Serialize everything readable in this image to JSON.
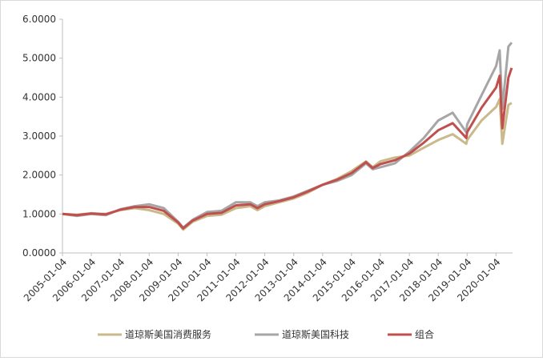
{
  "chart_data": {
    "type": "line",
    "x": [
      "2005-01-04",
      "2005-07-05",
      "2006-01-04",
      "2006-07-05",
      "2007-01-04",
      "2007-07-05",
      "2008-01-04",
      "2008-07-07",
      "2009-01-05",
      "2009-03-09",
      "2009-07-06",
      "2010-01-04",
      "2010-07-06",
      "2011-01-04",
      "2011-07-05",
      "2011-10-03",
      "2012-01-04",
      "2012-07-05",
      "2013-01-04",
      "2013-07-05",
      "2014-01-06",
      "2014-07-07",
      "2015-01-05",
      "2015-07-06",
      "2015-09-28",
      "2016-01-04",
      "2016-07-05",
      "2017-01-04",
      "2017-07-05",
      "2018-01-04",
      "2018-07-05",
      "2018-12-24",
      "2019-01-04",
      "2019-07-05",
      "2020-01-06",
      "2020-02-19",
      "2020-03-23",
      "2020-06-08",
      "2020-07-20"
    ],
    "series": [
      {
        "name": "道琼斯美国消费服务",
        "color": "#c9b98b",
        "values": [
          1.0,
          0.98,
          1.02,
          1.0,
          1.1,
          1.15,
          1.1,
          1.0,
          0.75,
          0.6,
          0.8,
          0.95,
          0.98,
          1.15,
          1.2,
          1.1,
          1.2,
          1.3,
          1.4,
          1.55,
          1.75,
          1.9,
          2.1,
          2.35,
          2.2,
          2.35,
          2.45,
          2.5,
          2.7,
          2.9,
          3.05,
          2.8,
          2.9,
          3.4,
          3.75,
          3.95,
          2.8,
          3.8,
          3.85
        ]
      },
      {
        "name": "道琼斯美国科技",
        "color": "#a6a6a6",
        "values": [
          1.0,
          0.95,
          1.0,
          0.97,
          1.12,
          1.2,
          1.25,
          1.15,
          0.8,
          0.65,
          0.85,
          1.05,
          1.08,
          1.3,
          1.3,
          1.2,
          1.3,
          1.35,
          1.45,
          1.6,
          1.75,
          1.85,
          2.0,
          2.3,
          2.15,
          2.2,
          2.3,
          2.6,
          2.95,
          3.4,
          3.6,
          3.1,
          3.3,
          4.05,
          4.8,
          5.2,
          3.7,
          5.3,
          5.4
        ]
      },
      {
        "name": "组合",
        "color": "#c0504d",
        "values": [
          1.0,
          0.97,
          1.01,
          0.99,
          1.11,
          1.18,
          1.18,
          1.08,
          0.78,
          0.63,
          0.83,
          1.0,
          1.03,
          1.22,
          1.25,
          1.15,
          1.25,
          1.33,
          1.43,
          1.58,
          1.75,
          1.88,
          2.05,
          2.33,
          2.18,
          2.28,
          2.38,
          2.55,
          2.83,
          3.15,
          3.33,
          2.95,
          3.1,
          3.73,
          4.25,
          4.55,
          3.2,
          4.5,
          4.75
        ]
      }
    ],
    "xlim": [
      "2005-01-04",
      "2020-07-31"
    ],
    "xticks": [
      "2005-01-04",
      "2006-01-04",
      "2007-01-04",
      "2008-01-04",
      "2009-01-04",
      "2010-01-04",
      "2011-01-04",
      "2012-01-04",
      "2013-01-04",
      "2014-01-04",
      "2015-01-04",
      "2016-01-04",
      "2017-01-04",
      "2018-01-04",
      "2019-01-04",
      "2020-01-04"
    ],
    "ylim": [
      0,
      6
    ],
    "yticks": [
      {
        "value": 0,
        "label": "0.0000"
      },
      {
        "value": 1,
        "label": "1.0000"
      },
      {
        "value": 2,
        "label": "2.0000"
      },
      {
        "value": 3,
        "label": "3.0000"
      },
      {
        "value": 4,
        "label": "4.0000"
      },
      {
        "value": 5,
        "label": "5.0000"
      },
      {
        "value": 6,
        "label": "6.0000"
      }
    ],
    "grid": false,
    "legend": "bottom"
  }
}
